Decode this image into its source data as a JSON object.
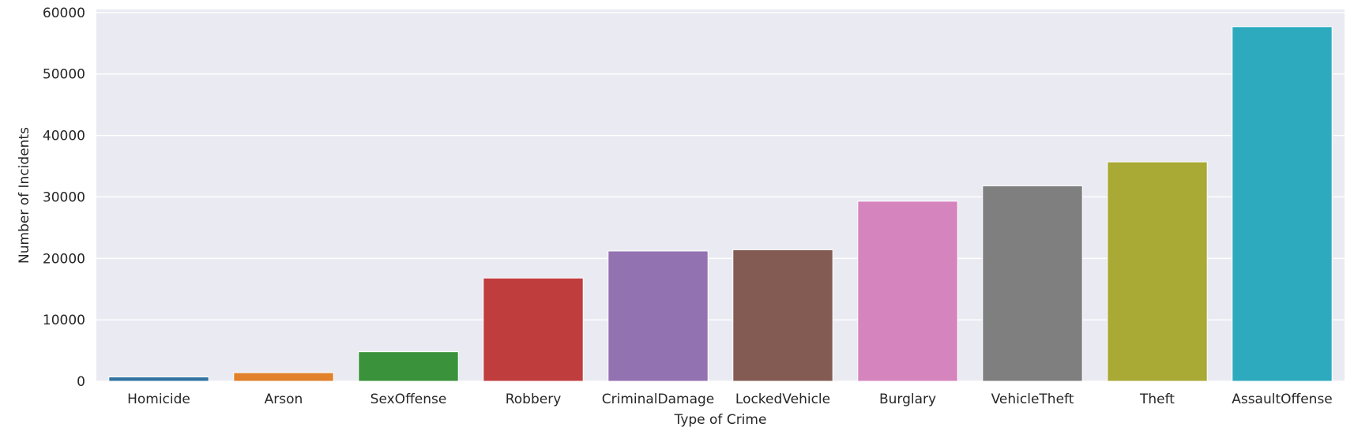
{
  "chart_data": {
    "type": "bar",
    "title": "",
    "xlabel": "Type of Crime",
    "ylabel": "Number of Incidents",
    "categories": [
      "Homicide",
      "Arson",
      "SexOffense",
      "Robbery",
      "CriminalDamage",
      "LockedVehicle",
      "Burglary",
      "VehicleTheft",
      "Theft",
      "AssaultOffense"
    ],
    "values": [
      700,
      1400,
      4800,
      16800,
      21200,
      21400,
      29300,
      31800,
      35700,
      57700
    ],
    "ylim": [
      0,
      60500
    ],
    "yticks": [
      0,
      10000,
      20000,
      30000,
      40000,
      50000,
      60000
    ],
    "ytick_labels": [
      "0",
      "10000",
      "20000",
      "30000",
      "40000",
      "50000",
      "60000"
    ],
    "grid": true,
    "colors": [
      "#3274a1",
      "#e1812c",
      "#3a923a",
      "#c03d3e",
      "#9372b2",
      "#845b53",
      "#d684bd",
      "#7f7f7f",
      "#a9aa35",
      "#2eaabf"
    ],
    "background": "#eaeaf2",
    "gridline_color": "#ffffff"
  }
}
